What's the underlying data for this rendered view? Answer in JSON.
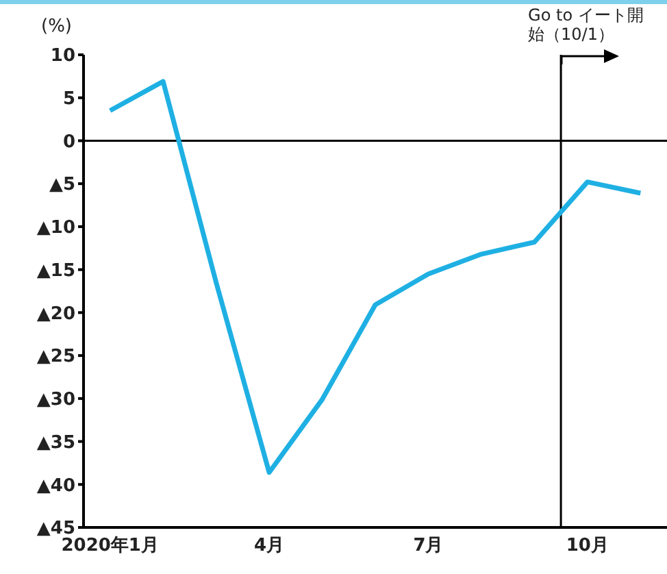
{
  "chart_data": {
    "type": "line",
    "ylabel": "(%)",
    "categories": [
      "2020年1月",
      null,
      null,
      "4月",
      null,
      null,
      "7月",
      null,
      null,
      "10月",
      null
    ],
    "series": [
      {
        "color": "#1fb0e3",
        "values": [
          3.5,
          6.9,
          -16.5,
          -38.6,
          -30.1,
          -19.1,
          -15.5,
          -13.2,
          -11.8,
          -4.8,
          -6.1
        ]
      }
    ],
    "ylim": [
      -45,
      10
    ],
    "yticks": [
      10,
      5,
      0,
      {
        "value": -5,
        "label": "▲5"
      },
      {
        "value": -10,
        "label": "▲10"
      },
      {
        "value": -15,
        "label": "▲15"
      },
      {
        "value": -20,
        "label": "▲20"
      },
      {
        "value": -25,
        "label": "▲25"
      },
      {
        "value": -30,
        "label": "▲30"
      },
      {
        "value": -35,
        "label": "▲35"
      },
      {
        "value": -40,
        "label": "▲40"
      },
      {
        "value": -45,
        "label": "▲45"
      }
    ],
    "ref_lines": [
      {
        "axis": "y",
        "value": 0,
        "color": "#000000"
      },
      {
        "axis": "x",
        "value": "10月",
        "label": "Go to イート開始（10/1）",
        "color": "#000000"
      }
    ],
    "marker": "none",
    "line_style": "solid"
  }
}
